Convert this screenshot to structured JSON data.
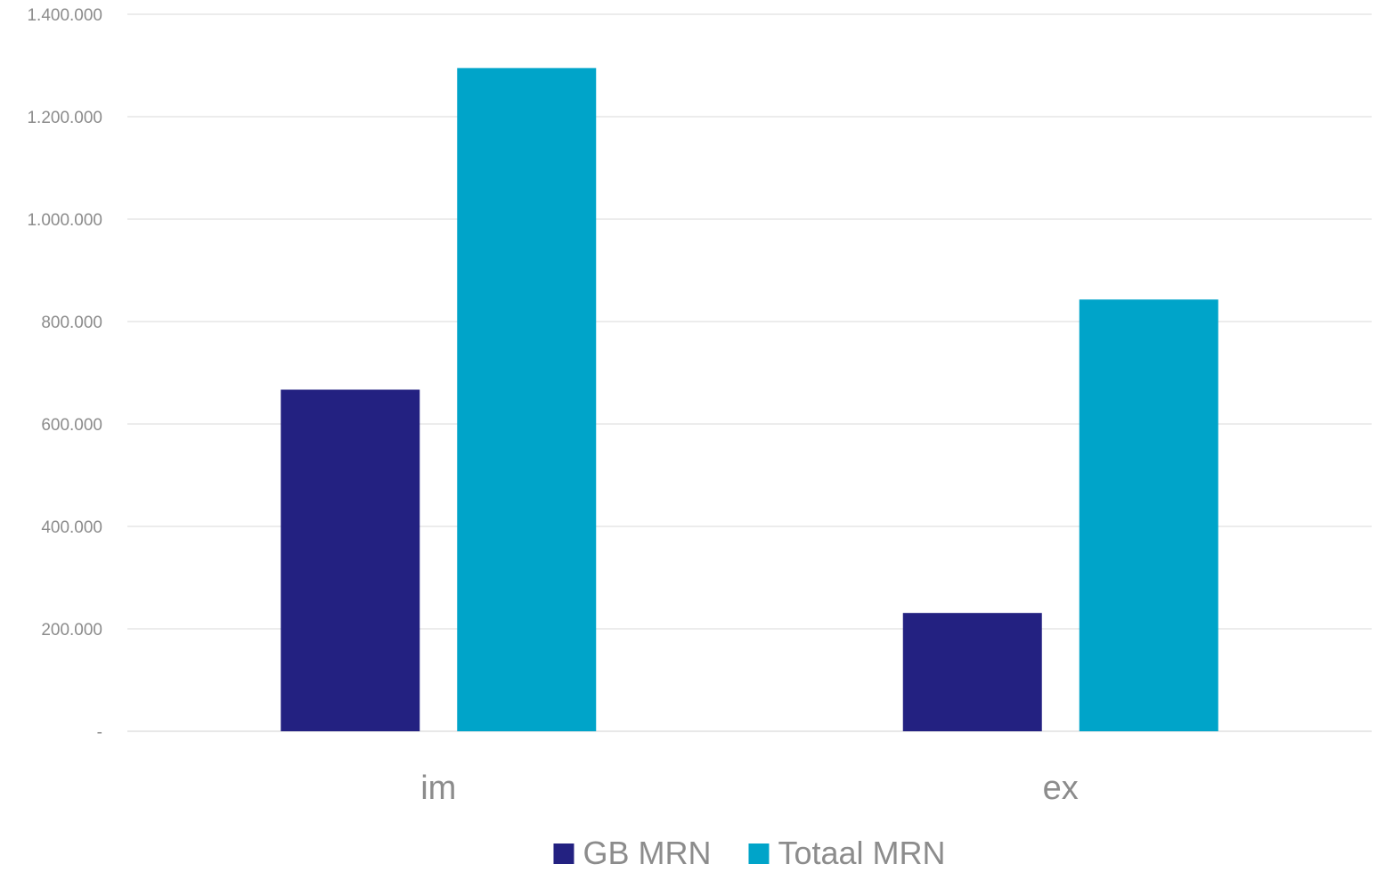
{
  "chart_data": {
    "type": "bar",
    "title": "",
    "xlabel": "",
    "ylabel": "",
    "categories": [
      "im",
      "ex"
    ],
    "series": [
      {
        "name": "GB MRN",
        "color": "#232181",
        "values": [
          667000,
          231000
        ]
      },
      {
        "name": "Totaal MRN",
        "color": "#00a4c9",
        "values": [
          1295000,
          843000
        ]
      }
    ],
    "ylim": [
      0,
      1400000
    ],
    "yticks": [
      0,
      200000,
      400000,
      600000,
      800000,
      1000000,
      1200000,
      1400000
    ],
    "ytick_labels": [
      "-",
      "200.000",
      "400.000",
      "600.000",
      "800.000",
      "1.000.000",
      "1.200.000",
      "1.400.000"
    ],
    "grid": true,
    "legend_position": "bottom-center"
  }
}
